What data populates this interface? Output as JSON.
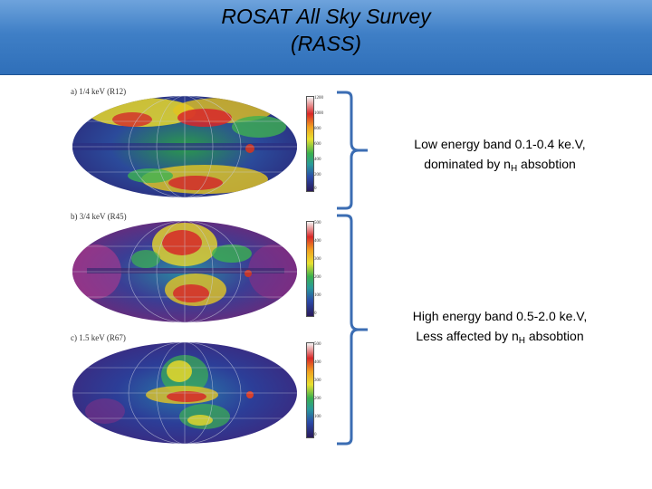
{
  "title": {
    "line1": "ROSAT All Sky Survey",
    "line2": "(RASS)"
  },
  "colors": {
    "title_bar": "#3f7fc6",
    "bracket": "#3b6db3"
  },
  "panels": [
    {
      "label": "a) 1/4 keV (R12)",
      "ticks": [
        "1200",
        "1000",
        "800",
        "600",
        "400",
        "200",
        "0"
      ]
    },
    {
      "label": "b) 3/4 keV (R45)",
      "ticks": [
        "500",
        "400",
        "300",
        "200",
        "100",
        "0"
      ]
    },
    {
      "label": "c) 1.5 keV (R67)",
      "ticks": [
        "500",
        "400",
        "300",
        "200",
        "100",
        "0"
      ]
    }
  ],
  "captions": {
    "low": {
      "line1": "Low energy band 0.1-0.4 ke.V,",
      "line2_pre": "dominated by n",
      "line2_sub": "H",
      "line2_post": " absobtion"
    },
    "high": {
      "line1": "High energy band 0.5-2.0 ke.V,",
      "line2_pre": "Less affected by n",
      "line2_sub": "H",
      "line2_post": " absobtion"
    }
  }
}
